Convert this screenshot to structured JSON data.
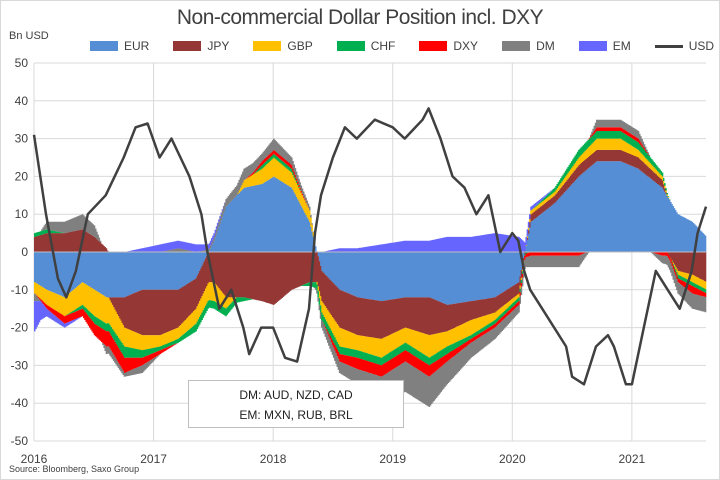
{
  "chart_data": {
    "type": "area",
    "title": "Non-commercial Dollar Position incl. DXY",
    "ylabel": "Bn USD",
    "xlabel": "",
    "ylim": [
      -50,
      50
    ],
    "xlim": [
      2016,
      2021.62
    ],
    "yticks": [
      "50",
      "40",
      "30",
      "20",
      "10",
      "0",
      "-10",
      "-20",
      "-30",
      "-40",
      "-50"
    ],
    "xticks": [
      "2016",
      "2017",
      "2018",
      "2019",
      "2020",
      "2021"
    ],
    "grid": true,
    "legend_position": "top",
    "series": [
      {
        "name": "EUR",
        "color": "#558ed5"
      },
      {
        "name": "JPY",
        "color": "#953735"
      },
      {
        "name": "GBP",
        "color": "#ffc000"
      },
      {
        "name": "CHF",
        "color": "#00b050"
      },
      {
        "name": "DXY",
        "color": "#ff0000"
      },
      {
        "name": "DM",
        "color": "#808080"
      },
      {
        "name": "EM",
        "color": "#6666ff"
      }
    ],
    "stack_x": [
      2016.0,
      2016.1,
      2016.25,
      2016.4,
      2016.5,
      2016.6,
      2016.75,
      2016.9,
      2017.05,
      2017.2,
      2017.35,
      2017.5,
      2017.6,
      2017.75,
      2017.9,
      2018.0,
      2018.15,
      2018.3,
      2018.4,
      2018.55,
      2018.7,
      2018.9,
      2019.1,
      2019.3,
      2019.45,
      2019.65,
      2019.85,
      2020.05,
      2020.15,
      2020.35,
      2020.55,
      2020.7,
      2020.9,
      2021.05,
      2021.25,
      2021.38,
      2021.5,
      2021.62
    ],
    "stack_values": [
      [
        -8,
        4,
        -3,
        1,
        0,
        -2,
        -8
      ],
      [
        -10,
        5,
        -4,
        1,
        -1,
        2,
        -2
      ],
      [
        -12,
        5,
        -5,
        0,
        -2,
        3,
        -1
      ],
      [
        -8,
        6,
        -6,
        -1,
        -2,
        4,
        0
      ],
      [
        -10,
        4,
        -7,
        -2,
        -3,
        3,
        0
      ],
      [
        -12,
        1,
        -7,
        -2,
        -4,
        -2,
        0
      ],
      [
        -12,
        -8,
        -5,
        -3,
        -4,
        -1,
        0
      ],
      [
        -10,
        -12,
        -4,
        -2,
        -2,
        -2,
        1
      ],
      [
        -10,
        -12,
        -3,
        -1,
        -1,
        0,
        2
      ],
      [
        -10,
        -10,
        -3,
        -1,
        0,
        1,
        2
      ],
      [
        -7,
        -8,
        -4,
        -2,
        0,
        0,
        2
      ],
      [
        3,
        -8,
        -5,
        -2,
        0,
        1,
        1
      ],
      [
        12,
        -12,
        -3,
        -2,
        0,
        2,
        0
      ],
      [
        17,
        -12,
        2,
        -1,
        0,
        3,
        0
      ],
      [
        18,
        -13,
        4,
        1,
        1,
        2,
        0
      ],
      [
        20,
        -14,
        5,
        1,
        1,
        3,
        0
      ],
      [
        17,
        -10,
        4,
        1,
        1,
        2,
        0
      ],
      [
        8,
        -8,
        3,
        -1,
        0,
        1,
        0
      ],
      [
        -5,
        -8,
        -3,
        -2,
        0,
        -2,
        0
      ],
      [
        -10,
        -10,
        -5,
        -2,
        -2,
        -3,
        1
      ],
      [
        -12,
        -10,
        -4,
        -2,
        -3,
        -4,
        1
      ],
      [
        -13,
        -10,
        -5,
        -2,
        -3,
        -6,
        2
      ],
      [
        -12,
        -8,
        -4,
        -2,
        -3,
        -8,
        3
      ],
      [
        -12,
        -10,
        -6,
        -2,
        -3,
        -8,
        3
      ],
      [
        -14,
        -7,
        -4,
        -2,
        -2,
        -6,
        4
      ],
      [
        -13,
        -5,
        -4,
        -1,
        -1,
        -4,
        4
      ],
      [
        -12,
        -4,
        -2,
        -1,
        -1,
        -3,
        5
      ],
      [
        -8,
        -3,
        -1,
        -1,
        -1,
        -2,
        4
      ],
      [
        8,
        2,
        1,
        0,
        -1,
        -3,
        1
      ],
      [
        13,
        2,
        1,
        1,
        -1,
        -3,
        0
      ],
      [
        20,
        3,
        2,
        2,
        -1,
        -3,
        0
      ],
      [
        24,
        3,
        3,
        2,
        1,
        2,
        0
      ],
      [
        24,
        3,
        3,
        2,
        1,
        2,
        0
      ],
      [
        22,
        3,
        2,
        2,
        1,
        2,
        0
      ],
      [
        17,
        2,
        1,
        1,
        -1,
        -2,
        0
      ],
      [
        10,
        -5,
        -1,
        -1,
        -1,
        -3,
        0
      ],
      [
        8,
        -6,
        -2,
        -1,
        -2,
        -4,
        0
      ],
      [
        4,
        -8,
        -2,
        -1,
        -1,
        -4,
        0
      ]
    ],
    "usd_line": {
      "name": "USD",
      "color": "#404040",
      "points": [
        [
          2016.0,
          31
        ],
        [
          2016.1,
          10
        ],
        [
          2016.2,
          -7
        ],
        [
          2016.27,
          -12
        ],
        [
          2016.35,
          -5
        ],
        [
          2016.45,
          10
        ],
        [
          2016.6,
          15
        ],
        [
          2016.75,
          25
        ],
        [
          2016.85,
          33
        ],
        [
          2016.95,
          34
        ],
        [
          2017.05,
          25
        ],
        [
          2017.15,
          30
        ],
        [
          2017.3,
          20
        ],
        [
          2017.4,
          10
        ],
        [
          2017.45,
          0
        ],
        [
          2017.55,
          -15
        ],
        [
          2017.65,
          -10
        ],
        [
          2017.75,
          -20
        ],
        [
          2017.8,
          -27
        ],
        [
          2017.9,
          -20
        ],
        [
          2018.0,
          -20
        ],
        [
          2018.1,
          -28
        ],
        [
          2018.2,
          -29
        ],
        [
          2018.3,
          -15
        ],
        [
          2018.35,
          5
        ],
        [
          2018.4,
          15
        ],
        [
          2018.5,
          25
        ],
        [
          2018.6,
          33
        ],
        [
          2018.7,
          30
        ],
        [
          2018.85,
          35
        ],
        [
          2019.0,
          33
        ],
        [
          2019.1,
          30
        ],
        [
          2019.25,
          35
        ],
        [
          2019.3,
          38
        ],
        [
          2019.4,
          30
        ],
        [
          2019.5,
          20
        ],
        [
          2019.6,
          17
        ],
        [
          2019.7,
          10
        ],
        [
          2019.8,
          15
        ],
        [
          2019.9,
          0
        ],
        [
          2020.0,
          5
        ],
        [
          2020.05,
          3
        ],
        [
          2020.1,
          -5
        ],
        [
          2020.15,
          -10
        ],
        [
          2020.25,
          -15
        ],
        [
          2020.45,
          -25
        ],
        [
          2020.5,
          -33
        ],
        [
          2020.6,
          -35
        ],
        [
          2020.7,
          -25
        ],
        [
          2020.8,
          -22
        ],
        [
          2020.85,
          -25
        ],
        [
          2020.95,
          -35
        ],
        [
          2021.0,
          -35
        ],
        [
          2021.1,
          -20
        ],
        [
          2021.2,
          -5
        ],
        [
          2021.3,
          -10
        ],
        [
          2021.4,
          -15
        ],
        [
          2021.5,
          -5
        ],
        [
          2021.55,
          5
        ],
        [
          2021.62,
          12
        ]
      ]
    },
    "annotation": [
      "DM: AUD, NZD, CAD",
      "EM: MXN, RUB, BRL"
    ],
    "source": "Source: Bloomberg, Saxo Group"
  }
}
